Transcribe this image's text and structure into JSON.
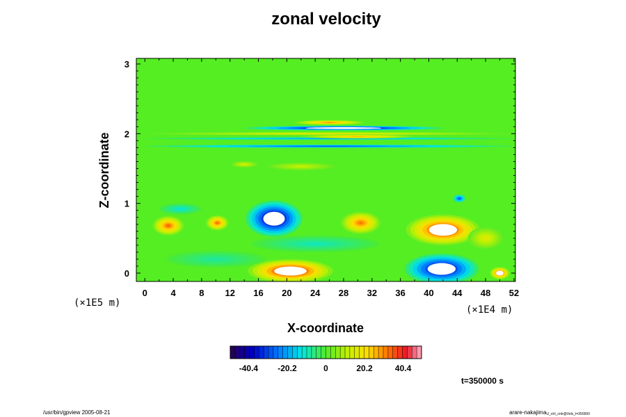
{
  "chart_data": {
    "type": "heatmap",
    "title": "zonal velocity",
    "xlabel": "X-coordinate",
    "ylabel": "Z-coordinate",
    "x_scale_note": "(×1E4 m)",
    "y_scale_note": "(×1E5 m)",
    "x_ticks": [
      0,
      4,
      8,
      12,
      16,
      20,
      24,
      28,
      32,
      36,
      40,
      44,
      48,
      52
    ],
    "y_ticks": [
      0,
      1,
      2,
      3
    ],
    "xlim": [
      -1.2,
      52.2
    ],
    "ylim": [
      -0.12,
      3.08
    ],
    "colorbar": {
      "ticks": [
        "-40.4",
        "-20.2",
        "0",
        "20.2",
        "40.4"
      ],
      "range": [
        -50,
        50
      ],
      "levels": 40
    },
    "background_value": 0,
    "features": [
      {
        "x": 18.2,
        "z": 0.78,
        "rx": 4.0,
        "rz": 0.26,
        "value": -48,
        "white_core": true
      },
      {
        "x": 41.8,
        "z": 0.06,
        "rx": 5.2,
        "rz": 0.22,
        "value": -44,
        "white_core": true
      },
      {
        "x": 20.5,
        "z": 0.03,
        "rx": 6.0,
        "rz": 0.17,
        "value": 46,
        "white_core": true
      },
      {
        "x": 42.0,
        "z": 0.62,
        "rx": 5.2,
        "rz": 0.22,
        "value": 44,
        "white_core": true
      },
      {
        "x": 3.3,
        "z": 0.68,
        "rx": 2.2,
        "rz": 0.14,
        "value": 34,
        "white_core": false
      },
      {
        "x": 10.2,
        "z": 0.72,
        "rx": 1.6,
        "rz": 0.11,
        "value": 33,
        "white_core": false
      },
      {
        "x": 30.4,
        "z": 0.72,
        "rx": 2.8,
        "rz": 0.16,
        "value": 32,
        "white_core": false
      },
      {
        "x": 50.0,
        "z": 0.0,
        "rx": 1.4,
        "rz": 0.09,
        "value": 40,
        "white_core": true
      },
      {
        "x": 44.3,
        "z": 1.07,
        "rx": 0.9,
        "rz": 0.06,
        "value": -30,
        "white_core": false
      },
      {
        "x": 28.0,
        "z": 2.08,
        "rx": 14.0,
        "rz": 0.035,
        "value": -46,
        "white_core": true
      },
      {
        "x": 26.0,
        "z": 2.16,
        "rx": 5.0,
        "rz": 0.035,
        "value": 30,
        "white_core": false
      },
      {
        "x": 26.0,
        "z": 1.82,
        "rx": 26.0,
        "rz": 0.025,
        "value": -30,
        "white_core": false
      },
      {
        "x": 26.0,
        "z": 1.93,
        "rx": 26.0,
        "rz": 0.02,
        "value": -22,
        "white_core": false
      },
      {
        "x": 26.0,
        "z": 2.0,
        "rx": 26.0,
        "rz": 0.025,
        "value": 18,
        "white_core": false
      },
      {
        "x": 30.0,
        "z": 1.96,
        "rx": 8.0,
        "rz": 0.03,
        "value": 26,
        "white_core": false
      },
      {
        "x": 22.0,
        "z": 1.53,
        "rx": 5.0,
        "rz": 0.06,
        "value": 12,
        "white_core": false
      },
      {
        "x": 14.0,
        "z": 1.56,
        "rx": 2.0,
        "rz": 0.05,
        "value": 14,
        "white_core": false
      },
      {
        "x": 5.0,
        "z": 0.92,
        "rx": 3.0,
        "rz": 0.08,
        "value": -12,
        "white_core": false
      },
      {
        "x": 24.0,
        "z": 0.42,
        "rx": 9.0,
        "rz": 0.12,
        "value": -10,
        "white_core": false
      },
      {
        "x": 10.0,
        "z": 0.2,
        "rx": 7.0,
        "rz": 0.12,
        "value": -8,
        "white_core": false
      },
      {
        "x": 48.0,
        "z": 0.5,
        "rx": 2.5,
        "rz": 0.16,
        "value": 16,
        "white_core": false
      }
    ]
  },
  "time_label": "t=350000 s",
  "footer_left": "/usr/bin/gpview 2005-08-21",
  "footer_right": "arare-nakajima",
  "footer_right_sub": "U_ctrl_cntr@Velx_t=350000"
}
